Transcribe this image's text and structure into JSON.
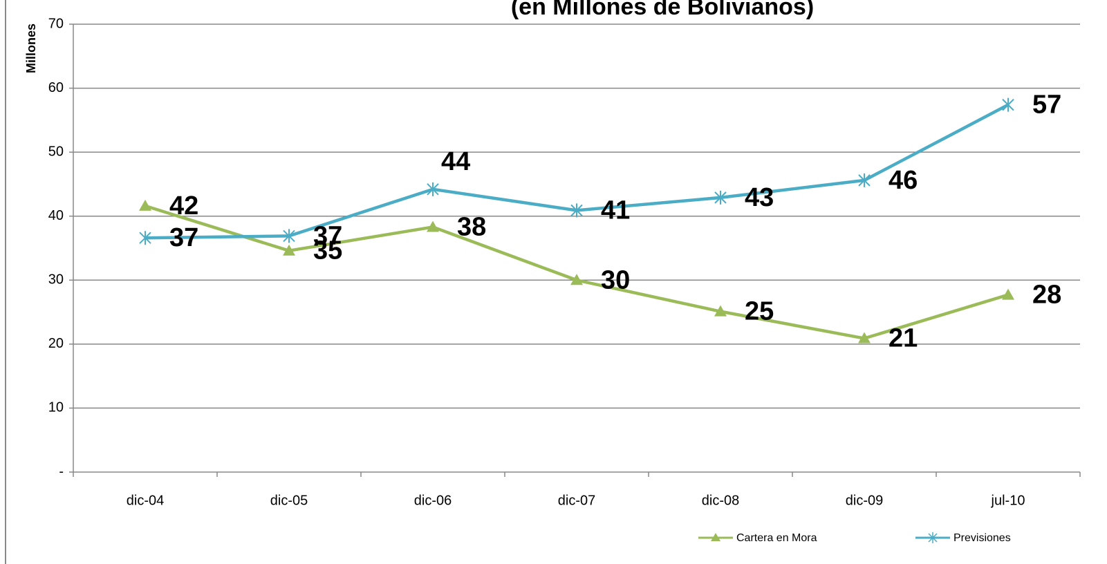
{
  "chart_data": {
    "type": "line",
    "title": "(en Millones de Bolivianos)",
    "ylabel": "Millones",
    "categories": [
      "dic-04",
      "dic-05",
      "dic-06",
      "dic-07",
      "dic-08",
      "dic-09",
      "jul-10"
    ],
    "series": [
      {
        "name": "Cartera en Mora",
        "color": "#9bbb59",
        "marker": "triangle",
        "values": [
          41.6,
          34.6,
          38.3,
          30.0,
          25.1,
          20.9,
          27.7
        ],
        "value_labels": [
          "42",
          "35",
          "38",
          "30",
          "25",
          "21",
          "28"
        ]
      },
      {
        "name": "Previsiones",
        "color": "#4bacc6",
        "marker": "star",
        "values": [
          36.6,
          36.9,
          44.2,
          40.9,
          42.9,
          45.6,
          57.4
        ],
        "value_labels": [
          "37",
          "37",
          "44",
          "41",
          "43",
          "46",
          "57"
        ]
      }
    ],
    "ylim": [
      0,
      70
    ],
    "yticks": [
      {
        "value": 0,
        "label": "-"
      },
      10,
      20,
      30,
      40,
      50,
      60,
      70
    ],
    "grid": true,
    "legend": "bottom-right"
  }
}
